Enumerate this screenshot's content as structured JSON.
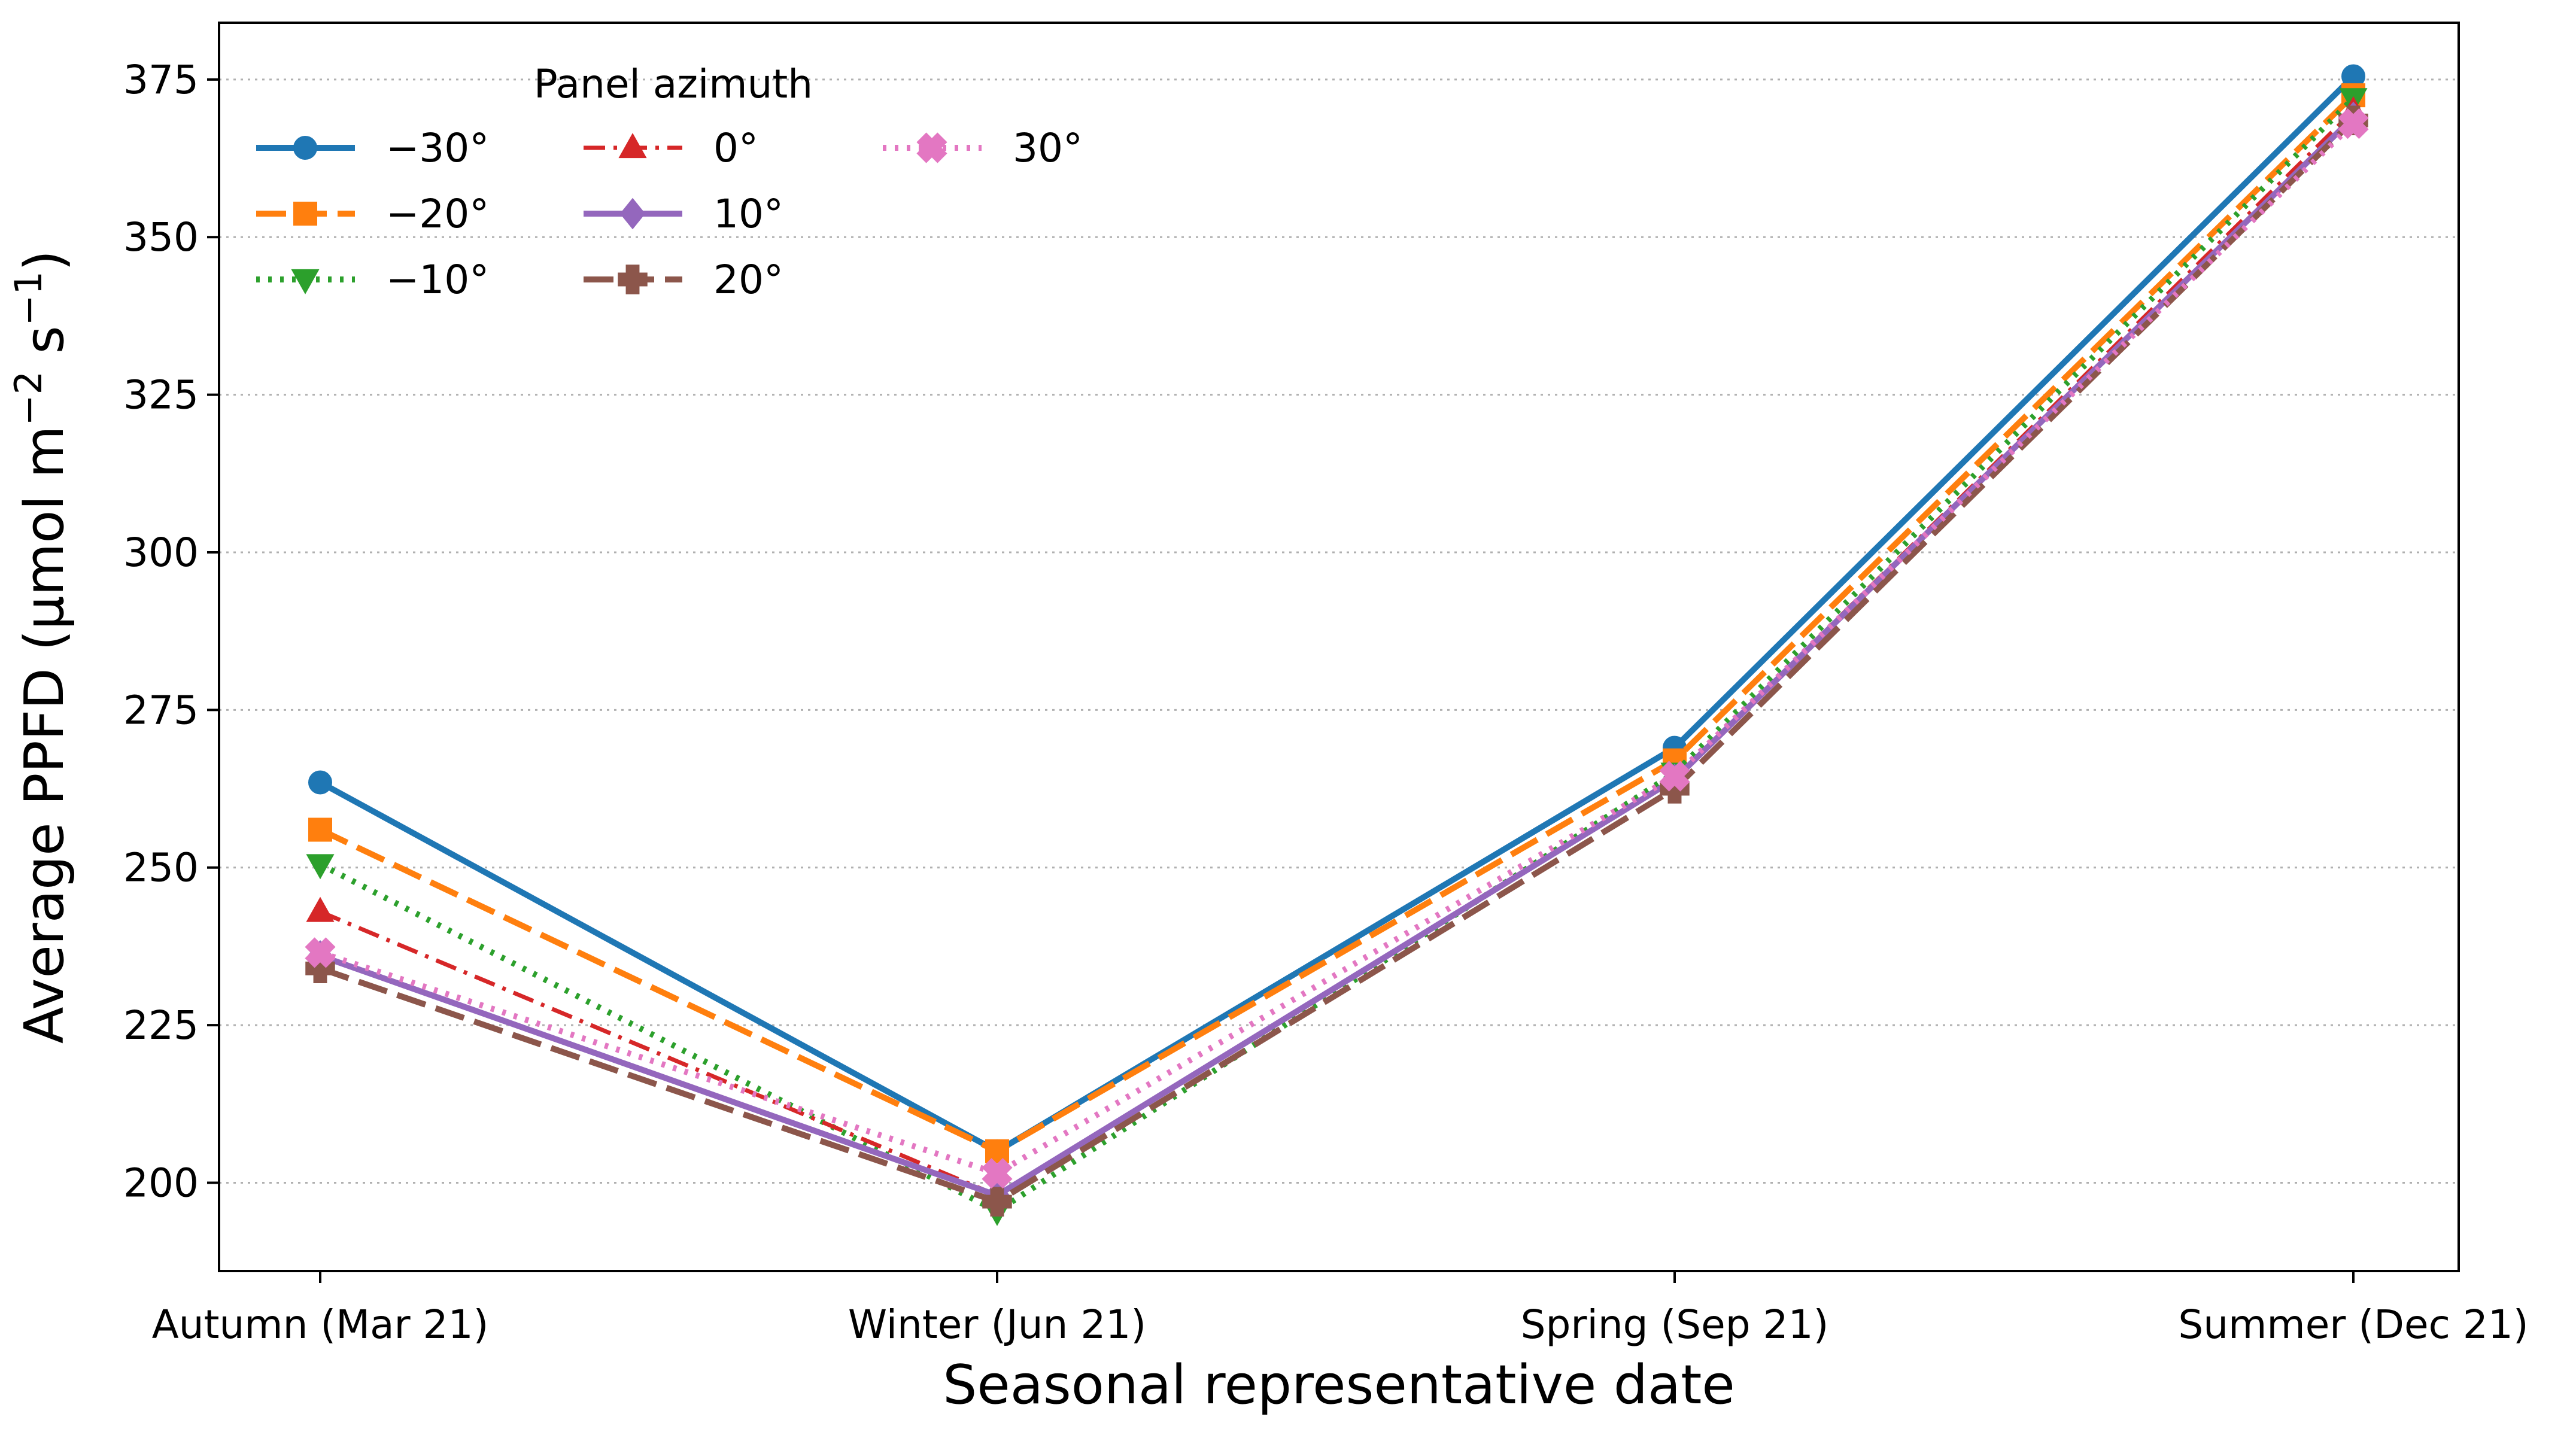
{
  "chart_data": {
    "type": "line",
    "title": "",
    "xlabel": "Seasonal representative date",
    "ylabel": "Average PPFD (µmol m⁻² s⁻¹)",
    "ylabel_parts": {
      "base": "Average PPFD (µmol m",
      "sup1": "−2",
      "mid": " s",
      "sup2": "−1",
      "end": ")"
    },
    "categories": [
      "Autumn (Mar 21)",
      "Winter (Jun 21)",
      "Spring (Sep 21)",
      "Summer (Dec 21)"
    ],
    "ylim": [
      186,
      384
    ],
    "yticks": [
      200,
      225,
      250,
      275,
      300,
      325,
      350,
      375
    ],
    "grid": "y-dotted",
    "legend": {
      "title": "Panel azimuth",
      "placement": "upper-left",
      "columns": 3
    },
    "series": [
      {
        "name": "−30°",
        "color": "#1f77b4",
        "marker": "circle",
        "dash": "solid",
        "values": [
          263.5,
          205.0,
          269.0,
          375.5
        ]
      },
      {
        "name": "−20°",
        "color": "#ff7f0e",
        "marker": "square",
        "dash": "dashed",
        "values": [
          256.0,
          205.0,
          267.0,
          372.5
        ]
      },
      {
        "name": "−10°",
        "color": "#2ca02c",
        "marker": "triangle-down",
        "dash": "dotted",
        "values": [
          250.5,
          195.5,
          265.0,
          372.0
        ]
      },
      {
        "name": "0°",
        "color": "#d62728",
        "marker": "triangle-up",
        "dash": "dashdot",
        "values": [
          243.0,
          198.0,
          264.0,
          370.0
        ]
      },
      {
        "name": "10°",
        "color": "#9467bd",
        "marker": "diamond",
        "dash": "solid",
        "values": [
          236.0,
          198.0,
          264.0,
          369.0
        ]
      },
      {
        "name": "20°",
        "color": "#8c564b",
        "marker": "plus",
        "dash": "dashed",
        "values": [
          234.0,
          197.0,
          262.5,
          368.5
        ]
      },
      {
        "name": "30°",
        "color": "#e377c2",
        "marker": "x",
        "dash": "dotted",
        "values": [
          236.5,
          201.5,
          264.5,
          368.0
        ]
      }
    ]
  }
}
